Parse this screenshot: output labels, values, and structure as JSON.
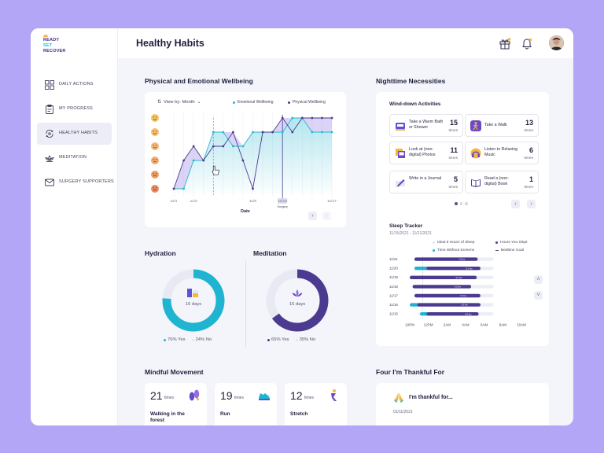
{
  "logo": {
    "line1": "READY",
    "line2": "SET",
    "line3": "RECOVER"
  },
  "sidebar": {
    "items": [
      {
        "label": "DAILY ACTIONS",
        "icon": "grid-icon"
      },
      {
        "label": "MY PROGRESS",
        "icon": "clipboard-icon"
      },
      {
        "label": "HEALTHY HABITS",
        "icon": "refresh-cycle-icon",
        "active": true
      },
      {
        "label": "MEDITATION",
        "icon": "lotus-icon"
      },
      {
        "label": "SURGERY SUPPORTERS",
        "icon": "mail-icon"
      }
    ]
  },
  "header": {
    "title": "Healthy Habits",
    "icons": [
      "gift-icon",
      "bell-icon",
      "avatar"
    ]
  },
  "wellbeing": {
    "title": "Physical and Emotional Wellbeing",
    "view_by_label": "View by: Month",
    "legend": [
      "Emotional Wellbeing",
      "Physical Wellbeing"
    ],
    "xlabel": "Date",
    "surgery_label": "Surgery"
  },
  "chart_data": {
    "type": "line",
    "x": [
      "11/1",
      "11/2",
      "11/3",
      "11/4",
      "11/5",
      "11/6",
      "11/7",
      "11/8",
      "11/9",
      "11/10",
      "11/11",
      "11/12",
      "11/13",
      "11/14",
      "11/15",
      "11/16",
      "11/17"
    ],
    "x_tick_labels": [
      "11/1",
      "11/3",
      "11/9",
      "11/12",
      "11/17"
    ],
    "y_scale": "mood-faces 1-6",
    "series": [
      {
        "name": "Emotional Wellbeing",
        "color": "#27b7cf",
        "values": [
          1,
          1,
          3,
          3,
          5,
          5,
          4,
          4,
          5,
          5,
          5,
          5,
          6,
          6,
          5,
          5,
          5
        ]
      },
      {
        "name": "Physical Wellbeing",
        "color": "#4b3a8f",
        "values": [
          1,
          3,
          4,
          3,
          4,
          4,
          5,
          3,
          1,
          5,
          5,
          6,
          5,
          6,
          6,
          6,
          6
        ]
      }
    ],
    "ylim": [
      1,
      6
    ],
    "annotations": [
      {
        "x": "11/12",
        "label": "Surgery"
      }
    ]
  },
  "nighttime": {
    "title": "Nighttime Necessities",
    "winddown_title": "Wind-down Activities",
    "activities": [
      {
        "label": "Take a Warm Bath or Shower",
        "count": "15",
        "unit": "times",
        "icon": "bath-icon"
      },
      {
        "label": "Take a Walk",
        "count": "13",
        "unit": "times",
        "icon": "walk-icon"
      },
      {
        "label": "Look at (non-digital) Photos",
        "count": "11",
        "unit": "times",
        "icon": "photos-icon"
      },
      {
        "label": "Listen to Relaxing Music",
        "count": "6",
        "unit": "times",
        "icon": "music-icon"
      },
      {
        "label": "Write in a Journal",
        "count": "5",
        "unit": "times",
        "icon": "journal-icon"
      },
      {
        "label": "Read a (non-digital) Book",
        "count": "1",
        "unit": "times",
        "icon": "book-icon"
      }
    ]
  },
  "sleep": {
    "title": "Sleep Tracker",
    "range": "11/15/2021 - 11/21/2021",
    "legend": [
      "Ideal 8 Hours of Sleep",
      "Hours You Slept",
      "Time Without Screens",
      "Bedtime Goal"
    ],
    "rows": [
      {
        "date": "11/21",
        "screen_start": 0,
        "screen_end": 0,
        "sleep_start": 0.5,
        "sleep_end": 7.3,
        "label": "7.8 hrs"
      },
      {
        "date": "11/20",
        "screen_start": 0.5,
        "screen_end": 1.8,
        "sleep_start": 1.8,
        "sleep_end": 7.6,
        "label": "8.2 hrs"
      },
      {
        "date": "11/19",
        "screen_start": 0,
        "screen_end": 0,
        "sleep_start": 0,
        "sleep_end": 7.2,
        "label": "6.6 hrs"
      },
      {
        "date": "11/18",
        "screen_start": 0,
        "screen_end": 0,
        "sleep_start": 0.3,
        "sleep_end": 6.6,
        "label": "6.2 hrs"
      },
      {
        "date": "11/17",
        "screen_start": 0,
        "screen_end": 0,
        "sleep_start": 0.5,
        "sleep_end": 7.6,
        "label": "7.2 hrs"
      },
      {
        "date": "11/16",
        "screen_start": 0,
        "screen_end": 0.8,
        "sleep_start": 0.8,
        "sleep_end": 7.6,
        "label": "6.2 hrs"
      },
      {
        "date": "11/15",
        "screen_start": 1.1,
        "screen_end": 1.8,
        "sleep_start": 1.8,
        "sleep_end": 7.4,
        "label": "6.0 hrs"
      }
    ],
    "x_ticks": [
      "10PM",
      "12PM",
      "2AM",
      "4AM",
      "6AM",
      "8AM",
      "10AM"
    ]
  },
  "hydration": {
    "title": "Hydration",
    "center": "16 days",
    "yes_pct": 76,
    "yes_label": "76% Yes",
    "no_label": "24% No",
    "color": "#1fb5d1"
  },
  "meditation": {
    "title": "Meditation",
    "center": "16 days",
    "yes_pct": 65,
    "yes_label": "65% Yes",
    "no_label": "35% No",
    "color": "#4b3a8f"
  },
  "mindful": {
    "title": "Mindful Movement",
    "items": [
      {
        "count": "21",
        "unit": "times",
        "label": "Walking in the forest",
        "icon": "footprints-icon"
      },
      {
        "count": "19",
        "unit": "times",
        "label": "Run",
        "icon": "shoe-icon"
      },
      {
        "count": "12",
        "unit": "times",
        "label": "Stretch",
        "icon": "stretch-icon"
      }
    ]
  },
  "thankful": {
    "title": "Four I'm Thankful For",
    "card_title": "I'm thankful for...",
    "date": "01/11/2021"
  }
}
